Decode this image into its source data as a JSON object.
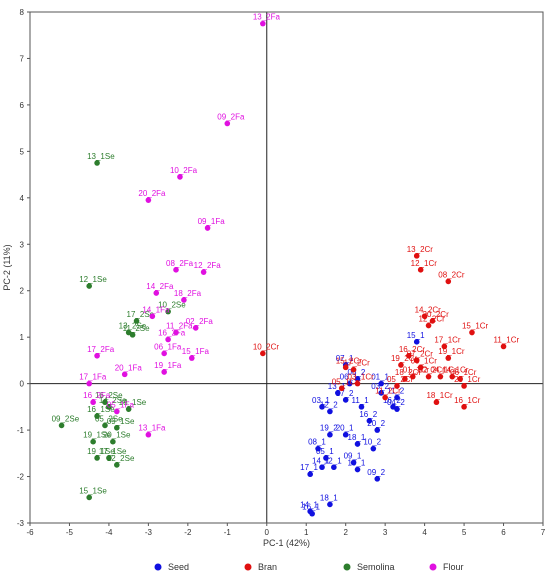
{
  "chart_data": {
    "type": "scatter",
    "xlabel": "PC-1 (42%)",
    "ylabel": "PC-2 (11%)",
    "xlim": [
      -6,
      7
    ],
    "ylim": [
      -3,
      8
    ],
    "xticks": [
      "-6",
      "-5",
      "-4",
      "-3",
      "-2",
      "-1",
      "0",
      "1",
      "2",
      "3",
      "4",
      "5",
      "6",
      "7"
    ],
    "yticks": [
      "-3",
      "-2",
      "-1",
      "0",
      "1",
      "2",
      "3",
      "4",
      "5",
      "6",
      "7",
      "8"
    ],
    "legend_position": "bottom",
    "zero_lines": true,
    "series": [
      {
        "name": "Seed",
        "color": "#1010e0",
        "points": [
          {
            "x": 3.8,
            "y": 0.9,
            "label": "15_1"
          },
          {
            "x": 2.0,
            "y": 0.4,
            "label": "07_1"
          },
          {
            "x": 2.3,
            "y": 0.1,
            "label": "06_2"
          },
          {
            "x": 2.9,
            "y": 0.0,
            "label": "01_1"
          },
          {
            "x": 2.1,
            "y": 0.0,
            "label": "06_1"
          },
          {
            "x": 3.3,
            "y": -0.3,
            "label": "11_2"
          },
          {
            "x": 1.8,
            "y": -0.2,
            "label": "13_1"
          },
          {
            "x": 2.0,
            "y": -0.35,
            "label": "17_2"
          },
          {
            "x": 2.9,
            "y": -0.2,
            "label": "03_2"
          },
          {
            "x": 1.4,
            "y": -0.5,
            "label": "03_1"
          },
          {
            "x": 1.6,
            "y": -0.6,
            "label": "12_2"
          },
          {
            "x": 2.4,
            "y": -0.5,
            "label": "11_1"
          },
          {
            "x": 3.2,
            "y": -0.5,
            "label": "16_2"
          },
          {
            "x": 3.3,
            "y": -0.55,
            "label": "04_2"
          },
          {
            "x": 2.6,
            "y": -0.8,
            "label": "16_2"
          },
          {
            "x": 2.8,
            "y": -1.0,
            "label": "20_2"
          },
          {
            "x": 2.0,
            "y": -1.1,
            "label": "20_1"
          },
          {
            "x": 1.6,
            "y": -1.1,
            "label": "19_2"
          },
          {
            "x": 2.3,
            "y": -1.3,
            "label": "18_1"
          },
          {
            "x": 2.7,
            "y": -1.4,
            "label": "10_2"
          },
          {
            "x": 1.3,
            "y": -1.4,
            "label": "08_1"
          },
          {
            "x": 1.5,
            "y": -1.6,
            "label": "05_1"
          },
          {
            "x": 2.2,
            "y": -1.7,
            "label": "09_1"
          },
          {
            "x": 2.3,
            "y": -1.85,
            "label": "19_1"
          },
          {
            "x": 1.4,
            "y": -1.8,
            "label": "14_1"
          },
          {
            "x": 1.7,
            "y": -1.8,
            "label": "12_1"
          },
          {
            "x": 1.1,
            "y": -1.95,
            "label": "17_1"
          },
          {
            "x": 2.8,
            "y": -2.05,
            "label": "09_2"
          },
          {
            "x": 1.6,
            "y": -2.6,
            "label": "18_1"
          },
          {
            "x": 1.1,
            "y": -2.75,
            "label": "14_1"
          },
          {
            "x": 1.15,
            "y": -2.8,
            "label": "16_1"
          }
        ]
      },
      {
        "name": "Bran",
        "color": "#e01010",
        "points": [
          {
            "x": 3.8,
            "y": 2.75,
            "label": "13_2Cr"
          },
          {
            "x": 3.9,
            "y": 2.45,
            "label": "12_1Cr"
          },
          {
            "x": 4.6,
            "y": 2.2,
            "label": "08_2Cr"
          },
          {
            "x": 4.0,
            "y": 1.45,
            "label": "14_2Cr"
          },
          {
            "x": 4.2,
            "y": 1.35,
            "label": "20_2Cr"
          },
          {
            "x": 4.1,
            "y": 1.25,
            "label": "12_2Cr"
          },
          {
            "x": 5.2,
            "y": 1.1,
            "label": "15_1Cr"
          },
          {
            "x": 6.0,
            "y": 0.8,
            "label": "11_1Cr"
          },
          {
            "x": 4.5,
            "y": 0.8,
            "label": "17_1Cr"
          },
          {
            "x": 3.6,
            "y": 0.6,
            "label": "16_2Cr"
          },
          {
            "x": 3.8,
            "y": 0.5,
            "label": "07_2Cr"
          },
          {
            "x": 3.4,
            "y": 0.4,
            "label": "19_2Cr"
          },
          {
            "x": 4.6,
            "y": 0.55,
            "label": "19_1Cr"
          },
          {
            "x": 3.9,
            "y": 0.35,
            "label": "09_1Cr"
          },
          {
            "x": 3.7,
            "y": 0.15,
            "label": "01_1Cr"
          },
          {
            "x": 4.1,
            "y": 0.15,
            "label": "02_2Cr"
          },
          {
            "x": 3.5,
            "y": 0.1,
            "label": "18_2Cr"
          },
          {
            "x": 4.4,
            "y": 0.15,
            "label": "04_1Cr"
          },
          {
            "x": 4.7,
            "y": 0.15,
            "label": "14_1Cr"
          },
          {
            "x": 4.9,
            "y": 0.1,
            "label": "06_1Cr"
          },
          {
            "x": 3.3,
            "y": -0.05,
            "label": "05_2Cr"
          },
          {
            "x": 5.0,
            "y": -0.05,
            "label": "20_1Cr"
          },
          {
            "x": 4.3,
            "y": -0.4,
            "label": "18_1Cr"
          },
          {
            "x": 5.0,
            "y": -0.5,
            "label": "16_1Cr"
          },
          {
            "x": 2.0,
            "y": 0.35,
            "label": "15_2Cr"
          },
          {
            "x": 2.2,
            "y": 0.3,
            "label": "17_2Cr"
          },
          {
            "x": 1.9,
            "y": -0.1,
            "label": "05_1Cr"
          },
          {
            "x": 2.3,
            "y": 0.0,
            "label": "03_1Cr"
          },
          {
            "x": 3.0,
            "y": -0.3,
            "label": "11_2Cr"
          },
          {
            "x": -0.1,
            "y": 0.65,
            "label": "10_2Cr"
          }
        ]
      },
      {
        "name": "Semolina",
        "color": "#2d7d2d",
        "points": [
          {
            "x": -4.3,
            "y": 4.75,
            "label": "13_1Se"
          },
          {
            "x": -4.5,
            "y": 2.1,
            "label": "12_1Se"
          },
          {
            "x": -2.5,
            "y": 1.55,
            "label": "10_2Se"
          },
          {
            "x": -3.3,
            "y": 1.35,
            "label": "17_2Se"
          },
          {
            "x": -3.5,
            "y": 1.1,
            "label": "13_2Se"
          },
          {
            "x": -3.4,
            "y": 1.05,
            "label": "11_2Se"
          },
          {
            "x": -4.1,
            "y": -0.4,
            "label": "16_2Se"
          },
          {
            "x": -4.0,
            "y": -0.5,
            "label": "14_2Se"
          },
          {
            "x": -3.5,
            "y": -0.55,
            "label": "18_1Se"
          },
          {
            "x": -5.2,
            "y": -0.9,
            "label": "09_2Se"
          },
          {
            "x": -4.3,
            "y": -0.7,
            "label": "16_1Se"
          },
          {
            "x": -4.1,
            "y": -0.9,
            "label": "05_2Se"
          },
          {
            "x": -3.8,
            "y": -0.95,
            "label": "09_1Se"
          },
          {
            "x": -4.4,
            "y": -1.25,
            "label": "19_1Se"
          },
          {
            "x": -3.9,
            "y": -1.25,
            "label": "20_1Se"
          },
          {
            "x": -4.3,
            "y": -1.6,
            "label": "19_1Se"
          },
          {
            "x": -4.0,
            "y": -1.6,
            "label": "17_1Se"
          },
          {
            "x": -3.8,
            "y": -1.75,
            "label": "12_2Se"
          },
          {
            "x": -4.5,
            "y": -2.45,
            "label": "15_1Se"
          }
        ]
      },
      {
        "name": "Flour",
        "color": "#e010e0",
        "points": [
          {
            "x": -0.1,
            "y": 7.75,
            "label": "13_2Fa"
          },
          {
            "x": -1.0,
            "y": 5.6,
            "label": "09_2Fa"
          },
          {
            "x": -2.2,
            "y": 4.45,
            "label": "10_2Fa"
          },
          {
            "x": -3.0,
            "y": 3.95,
            "label": "20_2Fa"
          },
          {
            "x": -1.5,
            "y": 3.35,
            "label": "09_1Fa"
          },
          {
            "x": -2.3,
            "y": 2.45,
            "label": "08_2Fa"
          },
          {
            "x": -1.6,
            "y": 2.4,
            "label": "12_2Fa"
          },
          {
            "x": -2.8,
            "y": 1.95,
            "label": "14_2Fa"
          },
          {
            "x": -2.1,
            "y": 1.8,
            "label": "18_2Fa"
          },
          {
            "x": -2.9,
            "y": 1.45,
            "label": "14_1Fa"
          },
          {
            "x": -2.3,
            "y": 1.1,
            "label": "11_2Fa"
          },
          {
            "x": -2.5,
            "y": 0.95,
            "label": "16_2Fa"
          },
          {
            "x": -1.8,
            "y": 1.2,
            "label": "02_2Fa"
          },
          {
            "x": -2.6,
            "y": 0.65,
            "label": "06_1Fa"
          },
          {
            "x": -1.9,
            "y": 0.55,
            "label": "15_1Fa"
          },
          {
            "x": -4.3,
            "y": 0.6,
            "label": "17_2Fa"
          },
          {
            "x": -3.6,
            "y": 0.2,
            "label": "20_1Fa"
          },
          {
            "x": -4.5,
            "y": 0.0,
            "label": "17_1Fa"
          },
          {
            "x": -2.6,
            "y": 0.25,
            "label": "19_1Fa"
          },
          {
            "x": -4.4,
            "y": -0.4,
            "label": "16_2Fa"
          },
          {
            "x": -3.8,
            "y": -0.6,
            "label": "05_1Fa"
          },
          {
            "x": -3.0,
            "y": -1.1,
            "label": "13_1Fa"
          }
        ]
      }
    ]
  }
}
